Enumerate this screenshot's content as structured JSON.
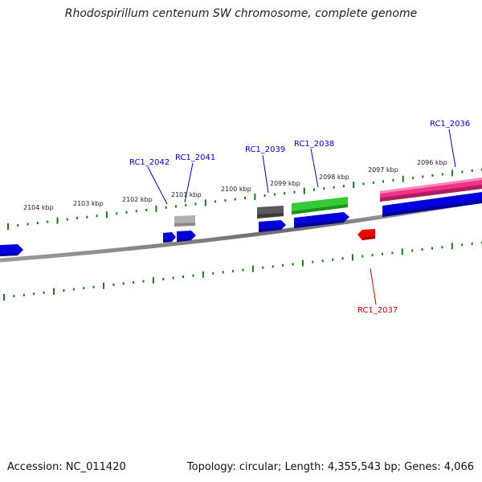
{
  "title": "Rhodospirillum centenum SW chromosome, complete genome",
  "footer": {
    "accession": "Accession: NC_011420",
    "summary": "Topology: circular; Length: 4,355,543 bp; Genes: 4,066"
  },
  "scale_labels": [
    "2104 kbp",
    "2103 kbp",
    "2102 kbp",
    "2101 kbp",
    "2100 kbp",
    "2099 kbp",
    "2098 kbp",
    "2097 kbp",
    "2096 kbp"
  ],
  "gene_labels": [
    {
      "name": "RC1_2042",
      "color": "#0000cc"
    },
    {
      "name": "RC1_2041",
      "color": "#0000cc"
    },
    {
      "name": "RC1_2039",
      "color": "#0000cc"
    },
    {
      "name": "RC1_2038",
      "color": "#0000cc"
    },
    {
      "name": "RC1_2036",
      "color": "#0000cc"
    },
    {
      "name": "RC1_2037",
      "color": "#cc0000"
    }
  ],
  "colors": {
    "backbone": "#7a7a7a",
    "ticks": "#1a7a1a",
    "cds": "#0000dd",
    "cds_reverse": "#ee0000",
    "gene_light": "#b0b0b0",
    "gene_dark": "#5a5a5a",
    "green_feature": "#33cc33",
    "pink_feature": "#ee3388"
  }
}
